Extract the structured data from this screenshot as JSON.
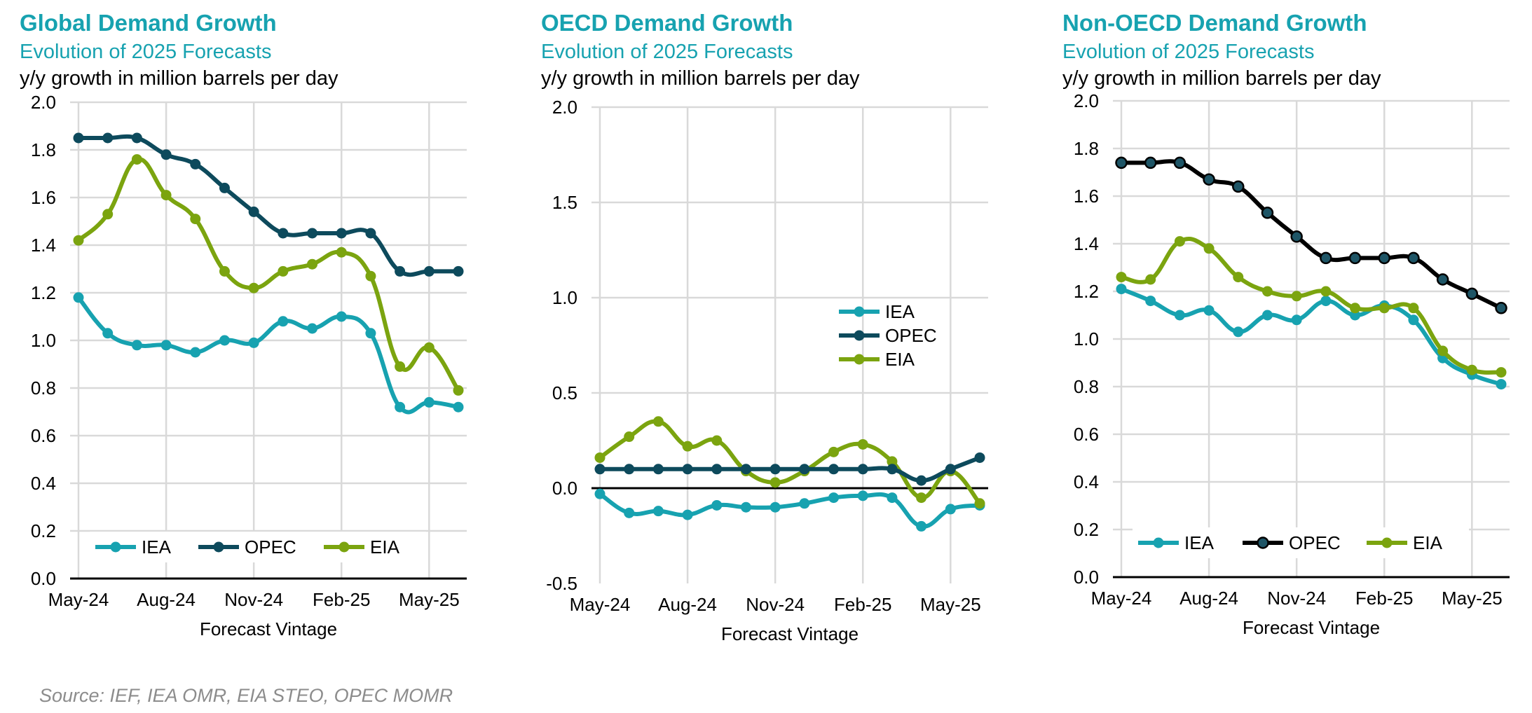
{
  "source": "Source: IEF, IEA OMR, EIA STEO, OPEC MOMR",
  "colors": {
    "IEA": "#17A2B0",
    "OPEC": "#0D4A5C",
    "OPEC_alt": "#000000",
    "EIA": "#7BA40F",
    "title": "#17A2B0",
    "grid": "#D9D9D9"
  },
  "charts": [
    {
      "title": "Global Demand Growth",
      "subtitle": "Evolution of 2025 Forecasts",
      "unit": "y/y growth in million barrels per day",
      "xlabel": "Forecast Vintage"
    },
    {
      "title": "OECD Demand Growth",
      "subtitle": "Evolution of 2025 Forecasts",
      "unit": "y/y growth in million barrels per day",
      "xlabel": "Forecast Vintage"
    },
    {
      "title": "Non-OECD Demand Growth",
      "subtitle": "Evolution of 2025 Forecasts",
      "unit": "y/y growth in million barrels per day",
      "xlabel": "Forecast Vintage"
    }
  ],
  "chart_data": [
    {
      "type": "line",
      "title": "Global Demand Growth",
      "subtitle": "Evolution of 2025 Forecasts",
      "ylabel": "y/y growth in million barrels per day",
      "xlabel": "Forecast Vintage",
      "ylim": [
        0,
        2.0
      ],
      "yticks": [
        0.0,
        0.2,
        0.4,
        0.6,
        0.8,
        1.0,
        1.2,
        1.4,
        1.6,
        1.8,
        2.0
      ],
      "tick_decimals": 1,
      "x": [
        "May-24",
        "Jun-24",
        "Jul-24",
        "Aug-24",
        "Sep-24",
        "Oct-24",
        "Nov-24",
        "Dec-24",
        "Jan-25",
        "Feb-25",
        "Mar-25",
        "Apr-25",
        "May-25",
        "Jun-25"
      ],
      "xtick_labels": [
        "May-24",
        "Aug-24",
        "Nov-24",
        "Feb-25",
        "May-25"
      ],
      "xtick_index": [
        0,
        3,
        6,
        9,
        12
      ],
      "legend": {
        "position": "bottom",
        "entries": [
          "IEA",
          "OPEC",
          "EIA"
        ]
      },
      "series": [
        {
          "name": "IEA",
          "values": [
            1.18,
            1.03,
            0.98,
            0.98,
            0.95,
            1.0,
            0.99,
            1.08,
            1.05,
            1.1,
            1.03,
            0.72,
            0.74,
            0.72
          ]
        },
        {
          "name": "OPEC",
          "values": [
            1.85,
            1.85,
            1.85,
            1.78,
            1.74,
            1.64,
            1.54,
            1.45,
            1.45,
            1.45,
            1.45,
            1.29,
            1.29,
            1.29
          ]
        },
        {
          "name": "EIA",
          "values": [
            1.42,
            1.53,
            1.76,
            1.61,
            1.51,
            1.29,
            1.22,
            1.29,
            1.32,
            1.37,
            1.27,
            0.89,
            0.97,
            0.79
          ]
        }
      ]
    },
    {
      "type": "line",
      "title": "OECD Demand Growth",
      "subtitle": "Evolution of 2025 Forecasts",
      "ylabel": "y/y growth in million barrels per day",
      "xlabel": "Forecast Vintage",
      "ylim": [
        -0.5,
        2.0
      ],
      "yticks": [
        -0.5,
        0.0,
        0.5,
        1.0,
        1.5,
        2.0
      ],
      "tick_decimals": 1,
      "zero_line": true,
      "x": [
        "May-24",
        "Jun-24",
        "Jul-24",
        "Aug-24",
        "Sep-24",
        "Oct-24",
        "Nov-24",
        "Dec-24",
        "Jan-25",
        "Feb-25",
        "Mar-25",
        "Apr-25",
        "May-25",
        "Jun-25"
      ],
      "xtick_labels": [
        "May-24",
        "Aug-24",
        "Nov-24",
        "Feb-25",
        "May-25"
      ],
      "xtick_index": [
        0,
        3,
        6,
        9,
        12
      ],
      "legend": {
        "position": "right",
        "entries": [
          "IEA",
          "OPEC",
          "EIA"
        ]
      },
      "series": [
        {
          "name": "IEA",
          "values": [
            -0.03,
            -0.13,
            -0.12,
            -0.14,
            -0.09,
            -0.1,
            -0.1,
            -0.08,
            -0.05,
            -0.04,
            -0.05,
            -0.2,
            -0.11,
            -0.09
          ]
        },
        {
          "name": "OPEC",
          "values": [
            0.1,
            0.1,
            0.1,
            0.1,
            0.1,
            0.1,
            0.1,
            0.1,
            0.1,
            0.1,
            0.1,
            0.04,
            0.1,
            0.16
          ]
        },
        {
          "name": "EIA",
          "values": [
            0.16,
            0.27,
            0.35,
            0.22,
            0.25,
            0.09,
            0.03,
            0.09,
            0.19,
            0.23,
            0.14,
            -0.05,
            0.09,
            -0.08
          ]
        }
      ]
    },
    {
      "type": "line",
      "title": "Non-OECD Demand Growth",
      "subtitle": "Evolution of 2025 Forecasts",
      "ylabel": "y/y growth in million barrels per day",
      "xlabel": "Forecast Vintage",
      "ylim": [
        0,
        2.0
      ],
      "yticks": [
        0.0,
        0.2,
        0.4,
        0.6,
        0.8,
        1.0,
        1.2,
        1.4,
        1.6,
        1.8,
        2.0
      ],
      "tick_decimals": 1,
      "x": [
        "May-24",
        "Jun-24",
        "Jul-24",
        "Aug-24",
        "Sep-24",
        "Oct-24",
        "Nov-24",
        "Dec-24",
        "Jan-25",
        "Feb-25",
        "Mar-25",
        "Apr-25",
        "May-25",
        "Jun-25"
      ],
      "xtick_labels": [
        "May-24",
        "Aug-24",
        "Nov-24",
        "Feb-25",
        "May-25"
      ],
      "xtick_index": [
        0,
        3,
        6,
        9,
        12
      ],
      "legend": {
        "position": "bottom",
        "entries": [
          "IEA",
          "OPEC",
          "EIA"
        ]
      },
      "series": [
        {
          "name": "IEA",
          "values": [
            1.21,
            1.16,
            1.1,
            1.12,
            1.03,
            1.1,
            1.08,
            1.16,
            1.1,
            1.14,
            1.08,
            0.92,
            0.85,
            0.81
          ]
        },
        {
          "name": "OPEC",
          "values": [
            1.74,
            1.74,
            1.74,
            1.67,
            1.64,
            1.53,
            1.43,
            1.34,
            1.34,
            1.34,
            1.34,
            1.25,
            1.19,
            1.13
          ]
        },
        {
          "name": "EIA",
          "values": [
            1.26,
            1.25,
            1.41,
            1.38,
            1.26,
            1.2,
            1.18,
            1.2,
            1.13,
            1.13,
            1.13,
            0.95,
            0.87,
            0.86
          ]
        }
      ]
    }
  ]
}
